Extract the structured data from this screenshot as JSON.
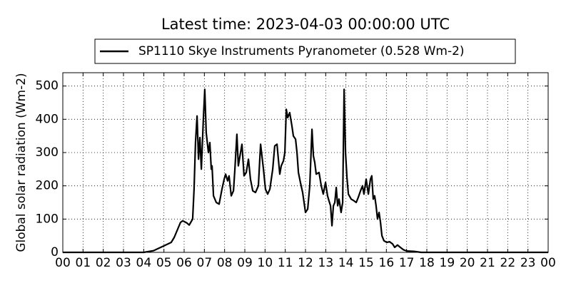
{
  "chart_data": {
    "type": "line",
    "title": "Latest time: 2023-04-03 00:00:00 UTC",
    "y_label": "Global solar radiation (Wm-2)",
    "grid": true,
    "legend": "upper center",
    "xlim": [
      0,
      24
    ],
    "ylim": [
      0,
      540
    ],
    "xticks": [
      {
        "value": 0,
        "label": "00"
      },
      {
        "value": 1,
        "label": "01"
      },
      {
        "value": 2,
        "label": "02"
      },
      {
        "value": 3,
        "label": "03"
      },
      {
        "value": 4,
        "label": "04"
      },
      {
        "value": 5,
        "label": "05"
      },
      {
        "value": 6,
        "label": "06"
      },
      {
        "value": 7,
        "label": "07"
      },
      {
        "value": 8,
        "label": "08"
      },
      {
        "value": 9,
        "label": "09"
      },
      {
        "value": 10,
        "label": "10"
      },
      {
        "value": 11,
        "label": "11"
      },
      {
        "value": 12,
        "label": "12"
      },
      {
        "value": 13,
        "label": "13"
      },
      {
        "value": 14,
        "label": "14"
      },
      {
        "value": 15,
        "label": "15"
      },
      {
        "value": 16,
        "label": "16"
      },
      {
        "value": 17,
        "label": "17"
      },
      {
        "value": 18,
        "label": "18"
      },
      {
        "value": 19,
        "label": "19"
      },
      {
        "value": 20,
        "label": "20"
      },
      {
        "value": 21,
        "label": "21"
      },
      {
        "value": 22,
        "label": "22"
      },
      {
        "value": 23,
        "label": "23"
      },
      {
        "value": 24,
        "label": "00"
      }
    ],
    "yticks": [
      0,
      100,
      200,
      300,
      400,
      500
    ],
    "x": [
      0,
      4.0,
      4.48,
      5.01,
      5.36,
      5.51,
      5.82,
      5.93,
      6.14,
      6.25,
      6.42,
      6.49,
      6.56,
      6.64,
      6.71,
      6.78,
      6.85,
      6.95,
      7.02,
      7.09,
      7.2,
      7.27,
      7.34,
      7.38,
      7.45,
      7.59,
      7.73,
      7.87,
      7.98,
      8.05,
      8.15,
      8.22,
      8.33,
      8.44,
      8.51,
      8.61,
      8.68,
      8.79,
      8.86,
      8.96,
      9.07,
      9.18,
      9.28,
      9.39,
      9.53,
      9.67,
      9.78,
      9.92,
      10.02,
      10.13,
      10.24,
      10.38,
      10.48,
      10.59,
      10.66,
      10.73,
      10.8,
      10.91,
      10.98,
      11.05,
      11.12,
      11.22,
      11.33,
      11.4,
      11.51,
      11.58,
      11.65,
      11.75,
      11.86,
      12.0,
      12.11,
      12.21,
      12.32,
      12.39,
      12.46,
      12.53,
      12.67,
      12.78,
      12.88,
      12.99,
      13.09,
      13.16,
      13.24,
      13.31,
      13.38,
      13.45,
      13.52,
      13.59,
      13.66,
      13.76,
      13.84,
      13.91,
      13.98,
      14.05,
      14.12,
      14.26,
      14.4,
      14.51,
      14.61,
      14.72,
      14.82,
      14.89,
      15.0,
      15.11,
      15.21,
      15.28,
      15.35,
      15.42,
      15.49,
      15.56,
      15.64,
      15.71,
      15.78,
      15.88,
      16.02,
      16.16,
      16.31,
      16.41,
      16.55,
      16.69,
      16.84,
      17.01,
      17.36,
      17.72,
      24
    ],
    "series": [
      {
        "name": "SP1110 Skye Instruments Pyranometer (0.528 Wm-2)",
        "color": "#000000",
        "values": [
          0,
          0,
          5,
          20,
          30,
          45,
          90,
          95,
          88,
          82,
          100,
          190,
          330,
          410,
          280,
          345,
          250,
          400,
          490,
          360,
          300,
          330,
          250,
          260,
          170,
          150,
          145,
          190,
          220,
          235,
          215,
          230,
          170,
          185,
          250,
          355,
          260,
          300,
          325,
          230,
          240,
          280,
          220,
          185,
          180,
          200,
          325,
          250,
          190,
          175,
          190,
          250,
          320,
          325,
          280,
          235,
          260,
          275,
          300,
          430,
          405,
          420,
          380,
          350,
          340,
          300,
          240,
          210,
          180,
          120,
          130,
          200,
          370,
          290,
          270,
          235,
          240,
          200,
          175,
          210,
          170,
          155,
          140,
          80,
          140,
          150,
          195,
          140,
          160,
          120,
          150,
          490,
          300,
          225,
          175,
          160,
          155,
          150,
          165,
          185,
          200,
          175,
          220,
          175,
          220,
          230,
          160,
          170,
          140,
          100,
          120,
          90,
          50,
          35,
          30,
          32,
          25,
          15,
          22,
          15,
          8,
          4,
          3,
          0,
          0
        ]
      }
    ]
  }
}
